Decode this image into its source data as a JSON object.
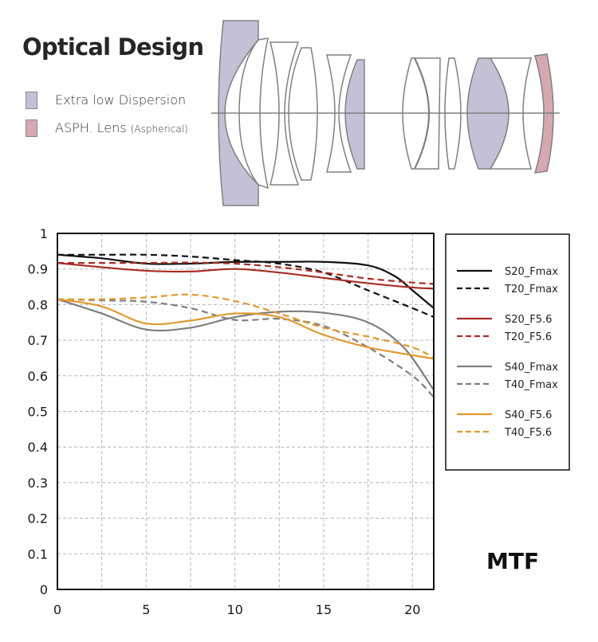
{
  "header": {
    "title": "Optical Design",
    "legend": [
      {
        "label": "Extra low Dispersion",
        "suffix": "",
        "color": "#c6c0d6"
      },
      {
        "label": "ASPH. Lens ",
        "suffix": "(Aspherical)",
        "color": "#d5a9b2"
      }
    ]
  },
  "lens_diagram": {
    "ed_color": "#c6c0d6",
    "asph_color": "#d5a9b2",
    "outline_color": "#808080",
    "element_count": 13,
    "ed_elements": 3,
    "asph_elements": 1
  },
  "mtf_label": "MTF",
  "chart_data": {
    "type": "line",
    "title": "MTF",
    "xlabel": "",
    "ylabel": "",
    "xlim": [
      0,
      21.2
    ],
    "ylim": [
      0,
      1
    ],
    "xticks": [
      "0",
      "5",
      "10",
      "15",
      "20"
    ],
    "xtick_values": [
      0,
      5,
      10,
      15,
      20
    ],
    "yticks": [
      "0",
      "0.1",
      "0.2",
      "0.3",
      "0.4",
      "0.5",
      "0.6",
      "0.7",
      "0.8",
      "0.9",
      "1"
    ],
    "ytick_values": [
      0,
      0.1,
      0.2,
      0.3,
      0.4,
      0.5,
      0.6,
      0.7,
      0.8,
      0.9,
      1.0
    ],
    "grid": true,
    "grid_x_step": 2.5,
    "grid_y_step": 0.1,
    "legend_position": "right",
    "series": [
      {
        "name": "S20_Fmax",
        "color": "#111111",
        "dashed": false,
        "x": [
          0,
          2.5,
          5,
          7.5,
          10,
          12.5,
          15,
          17.5,
          19,
          20,
          21.2
        ],
        "y": [
          0.94,
          0.93,
          0.915,
          0.915,
          0.92,
          0.92,
          0.92,
          0.91,
          0.88,
          0.84,
          0.79
        ]
      },
      {
        "name": "T20_Fmax",
        "color": "#111111",
        "dashed": true,
        "x": [
          0,
          2.5,
          5,
          7.5,
          10,
          12.5,
          15,
          17.5,
          20,
          21.2
        ],
        "y": [
          0.94,
          0.94,
          0.94,
          0.935,
          0.925,
          0.915,
          0.89,
          0.84,
          0.79,
          0.765
        ]
      },
      {
        "name": "S20_F5.6",
        "color": "#a82c24",
        "dashed": false,
        "x": [
          0,
          2.5,
          5,
          7.5,
          10,
          12.5,
          15,
          17.5,
          20,
          21.2
        ],
        "y": [
          0.917,
          0.905,
          0.895,
          0.893,
          0.9,
          0.89,
          0.875,
          0.86,
          0.848,
          0.845
        ]
      },
      {
        "name": "T20_F5.6",
        "color": "#a82c24",
        "dashed": true,
        "x": [
          0,
          2.5,
          5,
          7.5,
          10,
          12.5,
          15,
          17.5,
          20,
          21.2
        ],
        "y": [
          0.917,
          0.917,
          0.917,
          0.918,
          0.915,
          0.905,
          0.89,
          0.873,
          0.862,
          0.858
        ]
      },
      {
        "name": "S40_Fmax",
        "color": "#7f7f7f",
        "dashed": false,
        "x": [
          0,
          2.5,
          5,
          7.5,
          10,
          12.5,
          15,
          17.5,
          19.5,
          21.2
        ],
        "y": [
          0.815,
          0.775,
          0.73,
          0.735,
          0.765,
          0.78,
          0.777,
          0.75,
          0.68,
          0.56
        ]
      },
      {
        "name": "T40_Fmax",
        "color": "#7f7f7f",
        "dashed": true,
        "x": [
          0,
          2.5,
          5,
          7.5,
          10,
          12.5,
          15,
          17.5,
          20,
          21.2
        ],
        "y": [
          0.815,
          0.812,
          0.808,
          0.79,
          0.757,
          0.76,
          0.74,
          0.68,
          0.6,
          0.54
        ]
      },
      {
        "name": "S40_F5.6",
        "color": "#e09a2e",
        "dashed": false,
        "x": [
          0,
          2.5,
          5,
          7.5,
          10,
          12.5,
          15,
          17.5,
          20,
          21.2
        ],
        "y": [
          0.815,
          0.795,
          0.747,
          0.755,
          0.775,
          0.765,
          0.715,
          0.68,
          0.658,
          0.648
        ]
      },
      {
        "name": "T40_F5.6",
        "color": "#e09a2e",
        "dashed": true,
        "x": [
          0,
          2.5,
          5,
          7.5,
          10,
          12.5,
          15,
          17.5,
          20,
          21.2
        ],
        "y": [
          0.815,
          0.815,
          0.82,
          0.828,
          0.81,
          0.775,
          0.735,
          0.71,
          0.68,
          0.65
        ]
      }
    ]
  }
}
